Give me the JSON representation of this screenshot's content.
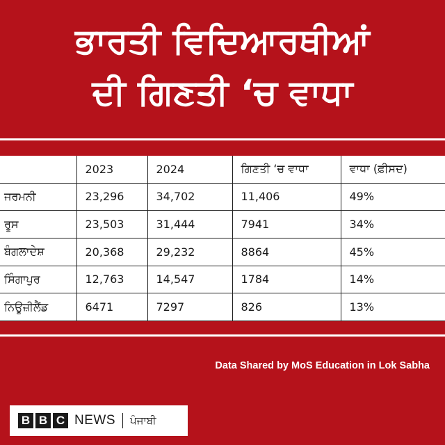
{
  "title": {
    "line1": "ਭਾਰਤੀ ਵਿਦਿਆਰਥੀਆਂ",
    "line2": "ਦੀ ਗਿਣਤੀ ‘ਚ ਵਾਧਾ"
  },
  "table": {
    "headers": [
      "",
      "2023",
      "2024",
      "ਗਿਣਤੀ ‘ਚ ਵਾਧਾ",
      "ਵਾਧਾ (ਫ਼ੀਸਦ)"
    ],
    "rows": [
      [
        "ਜਰਮਨੀ",
        "23,296",
        "34,702",
        "11,406",
        "49%"
      ],
      [
        "ਰੂਸ",
        "23,503",
        "31,444",
        "7941",
        "34%"
      ],
      [
        "ਬੰਗਲਾਦੇਸ਼",
        "20,368",
        "29,232",
        "8864",
        "45%"
      ],
      [
        "ਸਿੰਗਾਪੁਰ",
        "12,763",
        "14,547",
        "1784",
        "14%"
      ],
      [
        "ਨਿਊਜ਼ੀਲੈਂਡ",
        "6471",
        "7297",
        "826",
        "13%"
      ]
    ]
  },
  "source": "Data Shared by MoS Education in Lok Sabha",
  "logo": {
    "letters": [
      "B",
      "B",
      "C"
    ],
    "news": "NEWS",
    "language": "ਪੰਜਾਬੀ"
  },
  "colors": {
    "background": "#b5121b",
    "text_on_red": "#ffffff",
    "table_background": "#ffffff"
  }
}
